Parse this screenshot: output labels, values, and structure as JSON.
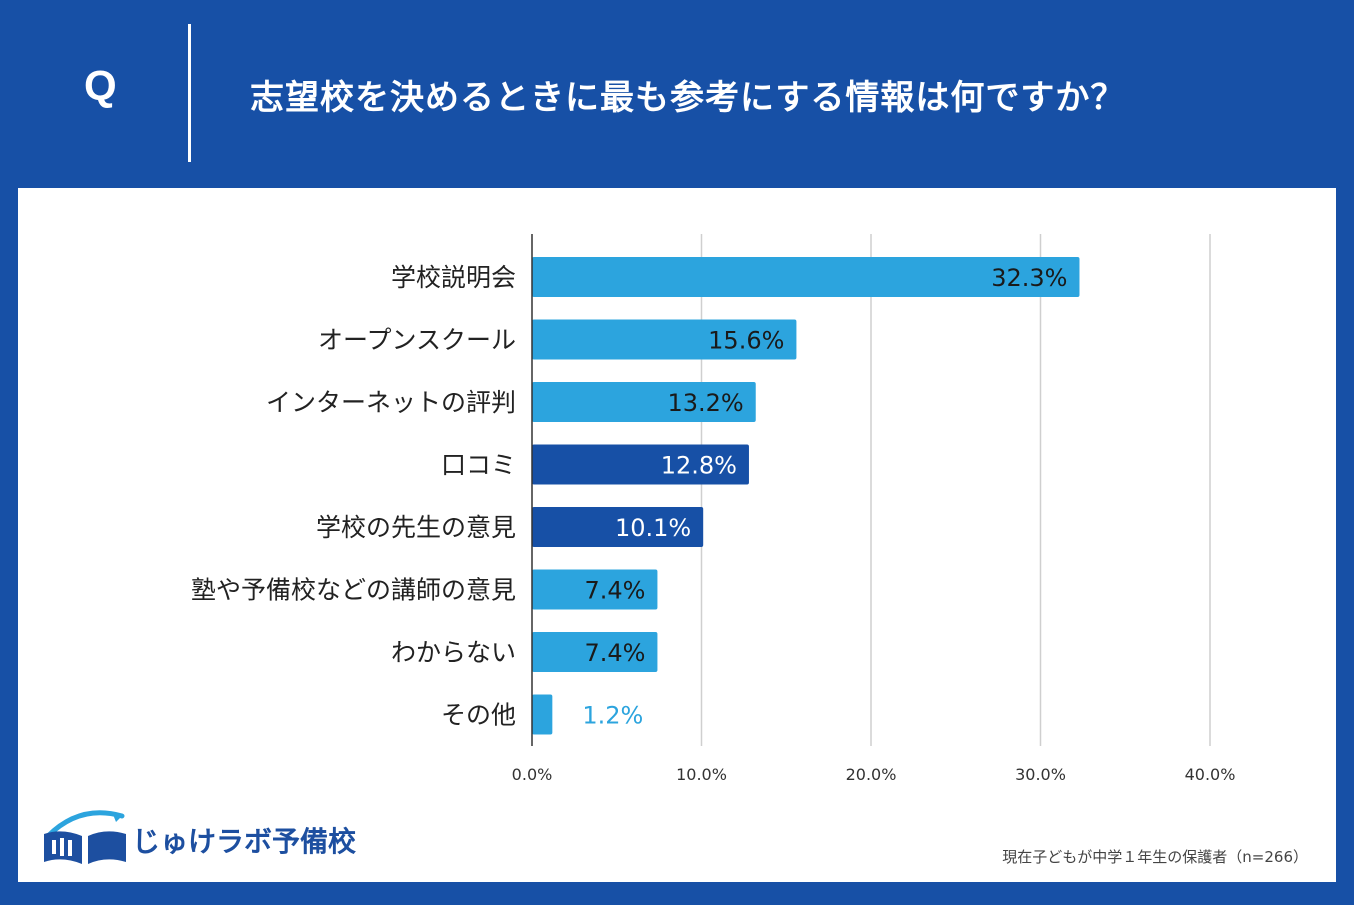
{
  "header": {
    "q_letter": "Q",
    "question": "志望校を決めるときに最も参考にする情報は何ですか？"
  },
  "colors": {
    "background": "#1750a6",
    "bar_light": "#2ca4de",
    "bar_dark": "#1750a6",
    "panel": "#ffffff"
  },
  "chart_data": {
    "type": "bar",
    "orientation": "horizontal",
    "title": "志望校を決めるときに最も参考にする情報は何ですか？",
    "categories": [
      "学校説明会",
      "オープンスクール",
      "インターネットの評判",
      "口コミ",
      "学校の先生の意見",
      "塾や予備校などの講師の意見",
      "わからない",
      "その他"
    ],
    "values": [
      32.3,
      15.6,
      13.2,
      12.8,
      10.1,
      7.4,
      7.4,
      1.2
    ],
    "value_labels": [
      "32.3%",
      "15.6%",
      "13.2%",
      "12.8%",
      "10.1%",
      "7.4%",
      "7.4%",
      "1.2%"
    ],
    "bar_styles": [
      "light",
      "light",
      "light",
      "dark",
      "dark",
      "light",
      "light",
      "light"
    ],
    "x_ticks": [
      0,
      10,
      20,
      30,
      40
    ],
    "x_tick_labels": [
      "0.0%",
      "10.0%",
      "20.0%",
      "30.0%",
      "40.0%"
    ],
    "xlim": [
      0,
      40
    ],
    "grid": true,
    "xlabel": "",
    "ylabel": ""
  },
  "footer": {
    "logo_text": "じゅけラボ予備校",
    "sample_note": "現在子どもが中学１年生の保護者（n=266）"
  }
}
